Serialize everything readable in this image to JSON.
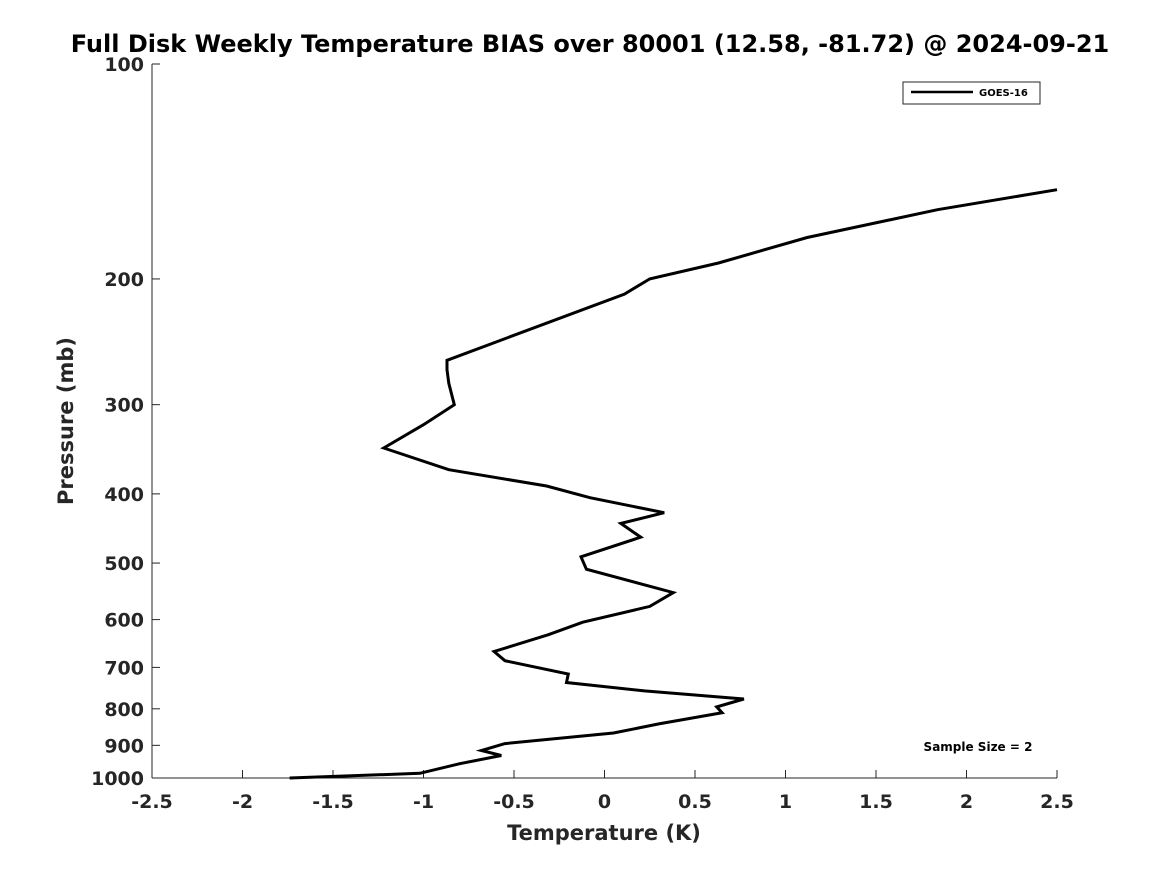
{
  "chart_data": {
    "type": "line",
    "title": "Full Disk Weekly Temperature BIAS over 80001 (12.58, -81.72) @ 2024-09-21",
    "xlabel": "Temperature (K)",
    "ylabel": "Pressure (mb)",
    "xlim": [
      -2.5,
      2.5
    ],
    "ylim": [
      100,
      1000
    ],
    "y_scale": "log",
    "y_reversed": true,
    "grid": false,
    "x_ticks": [
      -2.5,
      -2,
      -1.5,
      -1,
      -0.5,
      0,
      0.5,
      1,
      1.5,
      2,
      2.5
    ],
    "x_tick_labels": [
      "-2.5",
      "-2",
      "-1.5",
      "-1",
      "-0.5",
      "0",
      "0.5",
      "1",
      "1.5",
      "2",
      "2.5"
    ],
    "y_ticks": [
      100,
      200,
      300,
      400,
      500,
      600,
      700,
      800,
      900,
      1000
    ],
    "y_tick_labels": [
      "100",
      "200",
      "300",
      "400",
      "500",
      "600",
      "700",
      "800",
      "900",
      "1000"
    ],
    "legend": {
      "position": "top-right",
      "entries": [
        "GOES-16"
      ]
    },
    "annotation": "Sample Size = 2",
    "series": [
      {
        "name": "GOES-16",
        "color": "#000000",
        "x": [
          2.5,
          1.84,
          1.12,
          0.63,
          0.25,
          0.11,
          -0.87,
          -0.87,
          -0.86,
          -0.83,
          -1.0,
          -1.22,
          -0.86,
          -0.32,
          -0.08,
          0.33,
          0.09,
          0.2,
          -0.13,
          -0.1,
          0.38,
          0.25,
          -0.12,
          -0.31,
          -0.61,
          -0.55,
          -0.2,
          -0.21,
          0.22,
          0.77,
          0.62,
          0.65,
          0.3,
          0.05,
          -0.55,
          -0.68,
          -0.57,
          -0.8,
          -1.02,
          -1.74
        ],
        "y": [
          150,
          160,
          175,
          190,
          200,
          210,
          260,
          268,
          280,
          300,
          320,
          345,
          370,
          390,
          405,
          425,
          440,
          460,
          490,
          510,
          550,
          575,
          605,
          630,
          665,
          685,
          715,
          735,
          755,
          775,
          795,
          810,
          840,
          865,
          895,
          915,
          930,
          955,
          985,
          1000
        ]
      }
    ]
  }
}
